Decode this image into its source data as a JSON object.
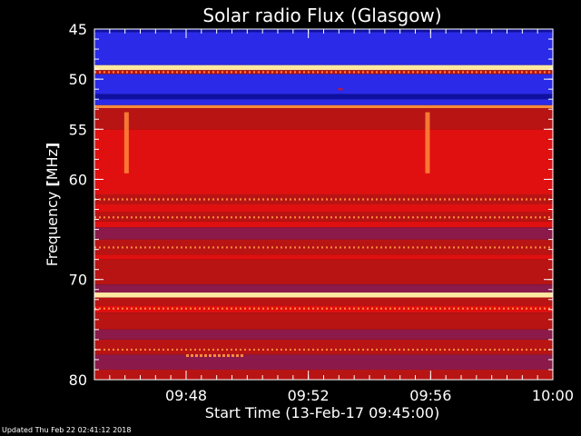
{
  "chart_data": {
    "type": "heatmap",
    "title": "Solar radio Flux (Glasgow)",
    "xlabel": "Start Time (13-Feb-17 09:45:00)",
    "ylabel_prefix": "Frequency ",
    "ylabel_unit": "MHz",
    "x_range_minutes": [
      0,
      15
    ],
    "y_range_mhz": [
      45,
      80
    ],
    "y_ticks": [
      {
        "value": 45,
        "label": "45"
      },
      {
        "value": 50,
        "label": "50"
      },
      {
        "value": 55,
        "label": "55"
      },
      {
        "value": 60,
        "label": "60"
      },
      {
        "value": 70,
        "label": "70"
      },
      {
        "value": 80,
        "label": "80"
      }
    ],
    "x_ticks": [
      {
        "value": 3,
        "label": "09:48"
      },
      {
        "value": 7,
        "label": "09:52"
      },
      {
        "value": 11,
        "label": "09:56"
      },
      {
        "value": 15,
        "label": "10:00"
      }
    ],
    "colormap": [
      "#1010a0",
      "#2a2ae8",
      "#8b1a4a",
      "#b81414",
      "#e01010",
      "#ff8a3a",
      "#ffe8a0"
    ],
    "bands": [
      {
        "from": 45.0,
        "to": 45.3,
        "level": 0
      },
      {
        "from": 45.3,
        "to": 48.6,
        "level": 1
      },
      {
        "from": 48.6,
        "to": 49.1,
        "level": 6
      },
      {
        "from": 49.1,
        "to": 49.5,
        "level": 3
      },
      {
        "from": 49.5,
        "to": 51.5,
        "level": 1
      },
      {
        "from": 51.5,
        "to": 52.0,
        "level": 0
      },
      {
        "from": 52.0,
        "to": 52.6,
        "level": 1
      },
      {
        "from": 52.6,
        "to": 52.9,
        "level": 5
      },
      {
        "from": 52.9,
        "to": 55.0,
        "level": 3
      },
      {
        "from": 55.0,
        "to": 61.5,
        "level": 4
      },
      {
        "from": 61.5,
        "to": 62.5,
        "level": 3
      },
      {
        "from": 62.5,
        "to": 63.3,
        "level": 4
      },
      {
        "from": 63.3,
        "to": 64.2,
        "level": 3
      },
      {
        "from": 64.2,
        "to": 64.8,
        "level": 4
      },
      {
        "from": 64.8,
        "to": 66.0,
        "level": 2
      },
      {
        "from": 66.0,
        "to": 67.5,
        "level": 3
      },
      {
        "from": 67.5,
        "to": 68.0,
        "level": 4
      },
      {
        "from": 68.0,
        "to": 70.5,
        "level": 3
      },
      {
        "from": 70.5,
        "to": 71.3,
        "level": 2
      },
      {
        "from": 71.3,
        "to": 71.8,
        "level": 6
      },
      {
        "from": 71.8,
        "to": 72.6,
        "level": 3
      },
      {
        "from": 72.6,
        "to": 73.3,
        "level": 4
      },
      {
        "from": 73.3,
        "to": 75.0,
        "level": 3
      },
      {
        "from": 75.0,
        "to": 76.0,
        "level": 2
      },
      {
        "from": 76.0,
        "to": 77.5,
        "level": 3
      },
      {
        "from": 77.5,
        "to": 79.0,
        "level": 2
      },
      {
        "from": 79.0,
        "to": 80.0,
        "level": 3
      }
    ],
    "sparkle_rows": [
      {
        "freq": 49.3,
        "level": 5
      },
      {
        "freq": 62.0,
        "level": 5
      },
      {
        "freq": 63.8,
        "level": 5
      },
      {
        "freq": 66.8,
        "level": 5
      },
      {
        "freq": 72.9,
        "level": 5
      },
      {
        "freq": 77.0,
        "level": 5
      }
    ],
    "features": [
      {
        "t": 1.05,
        "from": 53.3,
        "to": 59.4,
        "level": 5
      },
      {
        "t": 10.9,
        "from": 53.3,
        "to": 59.4,
        "level": 5
      },
      {
        "t": 8.05,
        "from": 50.9,
        "to": 51.1,
        "level": 4
      }
    ],
    "burst": {
      "t_from": 3.0,
      "t_to": 4.9,
      "freq": 77.6,
      "level": 5
    }
  },
  "footer": "Updated Thu Feb 22 02:41:12 2018"
}
